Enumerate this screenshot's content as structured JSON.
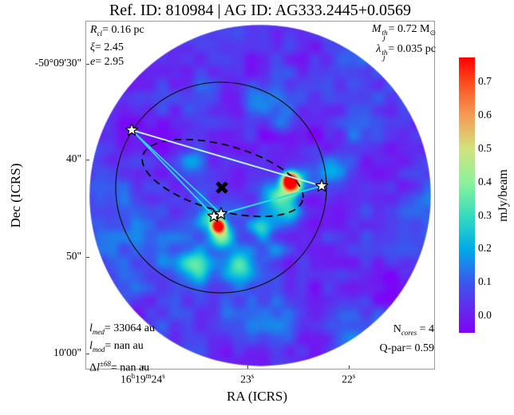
{
  "title": "Ref. ID: 810984 | AG ID: AG333.2445+0.0569",
  "annotations": {
    "top_left": {
      "l1": {
        "v": "R",
        "sub": "cl",
        "rest": "= 0.16 pc"
      },
      "l2": {
        "v": "ξ",
        "rest": "= 2.45"
      },
      "l3": {
        "v": "e",
        "rest": "= 2.95"
      }
    },
    "top_right": {
      "l1": {
        "v": "M",
        "sup": "th",
        "sub": "J",
        "rest": "= 0.72 M",
        "rsub": "⊙"
      },
      "l2": {
        "v": "λ",
        "sup": "th",
        "sub": "J",
        "rest": "= 0.035 pc"
      }
    },
    "bottom_left": {
      "l1": {
        "v": "l",
        "sub": "med",
        "rest": "= 33064 au"
      },
      "l2": {
        "v": "l",
        "sub": "mod",
        "rest": "= nan au"
      },
      "l3": {
        "d": "Δ",
        "v": "l",
        "sup": "±68",
        "rest": "= nan au"
      }
    },
    "bottom_right": {
      "l1": {
        "n": "N",
        "sub": "cores",
        "rest": " = 4"
      },
      "l2": {
        "rest": "Q-par= 0.59"
      }
    }
  },
  "axes": {
    "xlabel": "RA (ICRS)",
    "ylabel": "Dec (ICRS)",
    "x_ticks": [
      {
        "fx": 0.164,
        "parts": [
          {
            "t": "16",
            "u": "h"
          },
          {
            "t": "19",
            "u": "m"
          },
          {
            "t": "24",
            "u": "s"
          }
        ]
      },
      {
        "fx": 0.463,
        "parts": [
          {
            "t": "23",
            "u": "s"
          }
        ]
      },
      {
        "fx": 0.753,
        "parts": [
          {
            "t": "22",
            "u": "s"
          }
        ]
      }
    ],
    "y_ticks": [
      {
        "fy": 0.124,
        "label": "-50°09'30\""
      },
      {
        "fy": 0.398,
        "label": "40\""
      },
      {
        "fy": 0.677,
        "label": "50\""
      },
      {
        "fy": 0.954,
        "label": "10'00\""
      }
    ]
  },
  "chart_data": {
    "type": "heatmap",
    "title": "Ref. ID: 810984 | AG ID: AG333.2445+0.0569",
    "xlabel": "RA (ICRS)",
    "ylabel": "Dec (ICRS)",
    "colorbar": {
      "label": "mJy/beam",
      "tick_values": [
        0.7,
        0.6,
        0.5,
        0.4,
        0.3,
        0.2,
        0.1,
        0.0
      ],
      "vmin": -0.05,
      "vmax": 0.775,
      "colormap_name": "rainbow",
      "stops": [
        [
          0.0,
          "#7d03fa"
        ],
        [
          0.061,
          "#6d1ef0"
        ],
        [
          0.183,
          "#3b57ee"
        ],
        [
          0.304,
          "#00abe9"
        ],
        [
          0.426,
          "#35ddbc"
        ],
        [
          0.545,
          "#8bf29b"
        ],
        [
          0.667,
          "#cfe47e"
        ],
        [
          0.788,
          "#f59d55"
        ],
        [
          0.91,
          "#fc4c1c"
        ],
        [
          1.0,
          "#ff0000"
        ]
      ]
    },
    "stats": {
      "R_cl_pc": 0.16,
      "xi": 2.45,
      "e": 2.95,
      "M_J_th_Msun": 0.72,
      "lambda_J_th_pc": 0.035,
      "l_med_au": 33064,
      "l_mod_au": "nan",
      "dl_pm68_au": "nan",
      "N_cores": 4,
      "Q_par": 0.59
    },
    "field_circle": {
      "fx": 0.5,
      "fy": 0.501,
      "fr": 0.488
    },
    "cluster_circle": {
      "fx": 0.3881,
      "fy": 0.4782,
      "fr": 0.3014,
      "color": "#111111"
    },
    "dashed_ellipse": {
      "fx": 0.3927,
      "fy": 0.4508,
      "frx": 0.2374,
      "fry": 0.0938,
      "angle_deg": 15.5,
      "color": "#000000"
    },
    "center_cross": {
      "fx": 0.3904,
      "fy": 0.4782,
      "color": "#000000"
    },
    "cores": [
      {
        "fx": 0.1324,
        "fy": 0.3135
      },
      {
        "fx": 0.6758,
        "fy": 0.4737
      },
      {
        "fx": 0.3676,
        "fy": 0.5606
      },
      {
        "fx": 0.3881,
        "fy": 0.5537
      }
    ],
    "mst_edges": [
      {
        "a": 0,
        "b": 1,
        "color": "#b5f2ee",
        "w": 2.0
      },
      {
        "a": 0,
        "b": 2,
        "color": "#25dde6",
        "w": 1.7
      },
      {
        "a": 0,
        "b": 3,
        "color": "#25dde6",
        "w": 1.7
      },
      {
        "a": 2,
        "b": 1,
        "color": "#25dde6",
        "w": 1.7
      },
      {
        "a": 3,
        "b": 1,
        "color": "#25dde6",
        "w": 1.7
      }
    ],
    "noise": {
      "seed": 7,
      "base": 0.05,
      "coarse": {
        "cell": 24,
        "amp": 0.085
      },
      "fine": {
        "cell": 8,
        "amp": 0.055
      }
    },
    "blobs": [
      {
        "fx": 0.582,
        "fy": 0.455,
        "amp": 0.9,
        "sig": 0.014
      },
      {
        "fx": 0.594,
        "fy": 0.47,
        "amp": 0.45,
        "sig": 0.02
      },
      {
        "fx": 0.555,
        "fy": 0.49,
        "amp": 0.28,
        "sig": 0.028
      },
      {
        "fx": 0.378,
        "fy": 0.585,
        "amp": 0.9,
        "sig": 0.013
      },
      {
        "fx": 0.385,
        "fy": 0.615,
        "amp": 0.35,
        "sig": 0.025
      },
      {
        "fx": 0.35,
        "fy": 0.56,
        "amp": 0.2,
        "sig": 0.02
      },
      {
        "fx": 0.31,
        "fy": 0.7,
        "amp": 0.26,
        "sig": 0.034
      },
      {
        "fx": 0.44,
        "fy": 0.705,
        "amp": 0.22,
        "sig": 0.03
      },
      {
        "fx": 0.54,
        "fy": 0.655,
        "amp": 0.17,
        "sig": 0.028
      },
      {
        "fx": 0.5,
        "fy": 0.595,
        "amp": 0.18,
        "sig": 0.022
      },
      {
        "fx": 0.585,
        "fy": 0.545,
        "amp": 0.18,
        "sig": 0.02
      },
      {
        "fx": 0.47,
        "fy": 0.22,
        "amp": 0.13,
        "sig": 0.03
      },
      {
        "fx": 0.56,
        "fy": 0.3,
        "amp": 0.12,
        "sig": 0.026
      },
      {
        "fx": 0.3,
        "fy": 0.4,
        "amp": 0.12,
        "sig": 0.028
      },
      {
        "fx": 0.72,
        "fy": 0.42,
        "amp": 0.11,
        "sig": 0.03
      }
    ]
  }
}
